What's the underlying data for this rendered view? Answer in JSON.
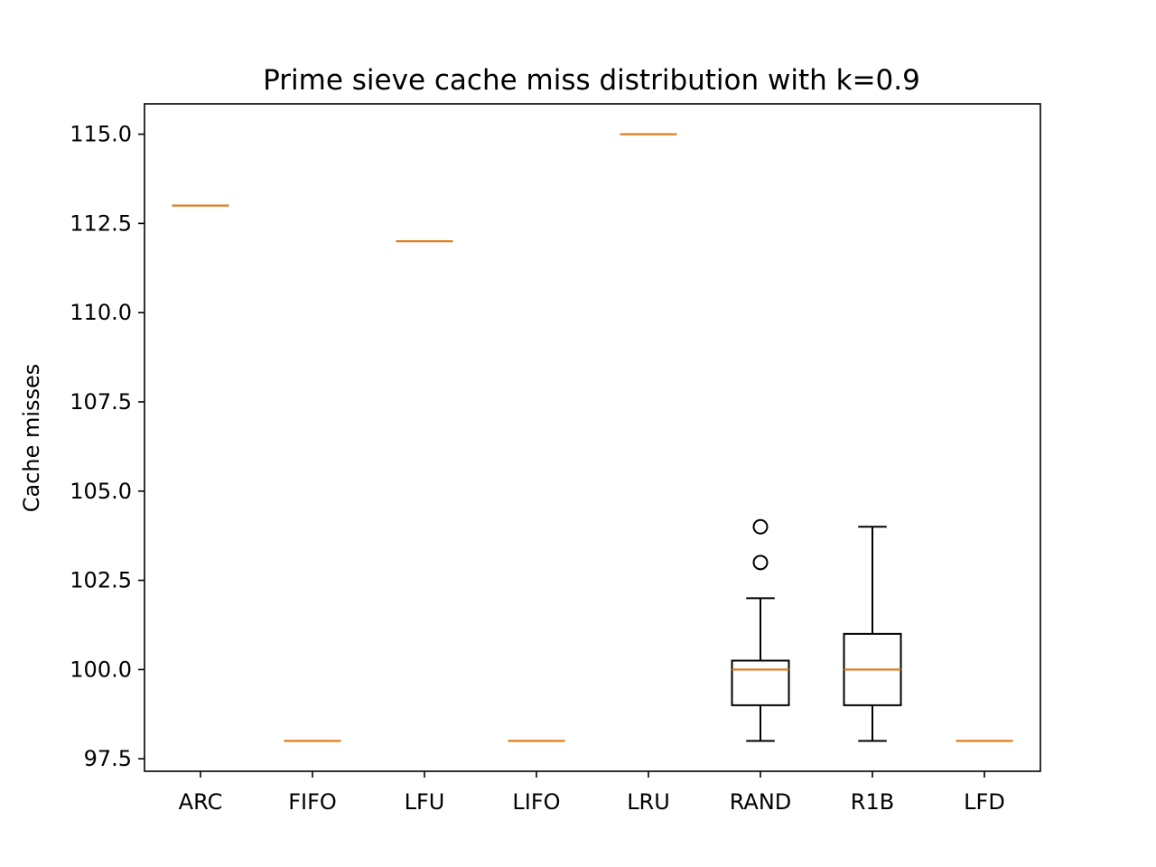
{
  "chart_data": {
    "type": "box",
    "title": "Prime sieve cache miss distribution with k=0.9",
    "xlabel": "",
    "ylabel": "Cache misses",
    "ylim": [
      97.15,
      115.85
    ],
    "yticks": [
      97.5,
      100.0,
      102.5,
      105.0,
      107.5,
      110.0,
      112.5,
      115.0
    ],
    "ytick_labels": [
      "97.5",
      "100.0",
      "102.5",
      "105.0",
      "107.5",
      "110.0",
      "112.5",
      "115.0"
    ],
    "categories": [
      "ARC",
      "FIFO",
      "LFU",
      "LIFO",
      "LRU",
      "RAND",
      "R1B",
      "LFD"
    ],
    "grid": false,
    "colors": {
      "median": "#e07b1f",
      "box": "#000000",
      "axes": "#000000"
    },
    "boxes": [
      {
        "label": "ARC",
        "whisker_low": 113,
        "q1": 113,
        "median": 113,
        "q3": 113,
        "whisker_high": 113,
        "outliers": []
      },
      {
        "label": "FIFO",
        "whisker_low": 98,
        "q1": 98,
        "median": 98,
        "q3": 98,
        "whisker_high": 98,
        "outliers": []
      },
      {
        "label": "LFU",
        "whisker_low": 112,
        "q1": 112,
        "median": 112,
        "q3": 112,
        "whisker_high": 112,
        "outliers": []
      },
      {
        "label": "LIFO",
        "whisker_low": 98,
        "q1": 98,
        "median": 98,
        "q3": 98,
        "whisker_high": 98,
        "outliers": []
      },
      {
        "label": "LRU",
        "whisker_low": 115,
        "q1": 115,
        "median": 115,
        "q3": 115,
        "whisker_high": 115,
        "outliers": []
      },
      {
        "label": "RAND",
        "whisker_low": 98,
        "q1": 99,
        "median": 100,
        "q3": 100.25,
        "whisker_high": 102,
        "outliers": [
          103,
          104
        ]
      },
      {
        "label": "R1B",
        "whisker_low": 98,
        "q1": 99,
        "median": 100,
        "q3": 101,
        "whisker_high": 104,
        "outliers": []
      },
      {
        "label": "LFD",
        "whisker_low": 98,
        "q1": 98,
        "median": 98,
        "q3": 98,
        "whisker_high": 98,
        "outliers": []
      }
    ]
  }
}
